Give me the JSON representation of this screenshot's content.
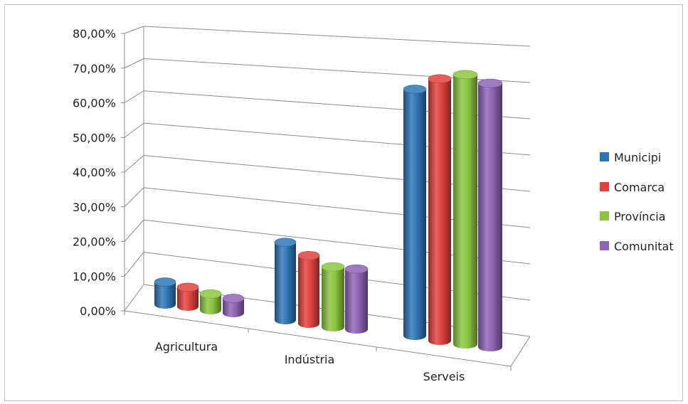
{
  "chart_data": {
    "type": "bar",
    "style": "3d-cylinder",
    "categories": [
      "Agricultura",
      "Indústria",
      "Serveis"
    ],
    "series": [
      {
        "name": "Municipi",
        "values": [
          3.2,
          17.5,
          61.0
        ],
        "color": "#2E75B6"
      },
      {
        "name": "Comarca",
        "values": [
          2.4,
          15.0,
          65.0
        ],
        "color": "#E0413E"
      },
      {
        "name": "Província",
        "values": [
          1.6,
          13.0,
          67.0
        ],
        "color": "#8CC63F"
      },
      {
        "name": "Comunitat",
        "values": [
          1.2,
          13.0,
          65.5
        ],
        "color": "#8E63B5"
      }
    ],
    "ylim": [
      0,
      80
    ],
    "yticks": [
      0,
      10,
      20,
      30,
      40,
      50,
      60,
      70,
      80
    ],
    "ytick_labels": [
      "0,00%",
      "10,00%",
      "20,00%",
      "30,00%",
      "40,00%",
      "50,00%",
      "60,00%",
      "70,00%",
      "80,00%"
    ],
    "grid": true,
    "legend_position": "right",
    "title": "",
    "xlabel": "",
    "ylabel": ""
  }
}
